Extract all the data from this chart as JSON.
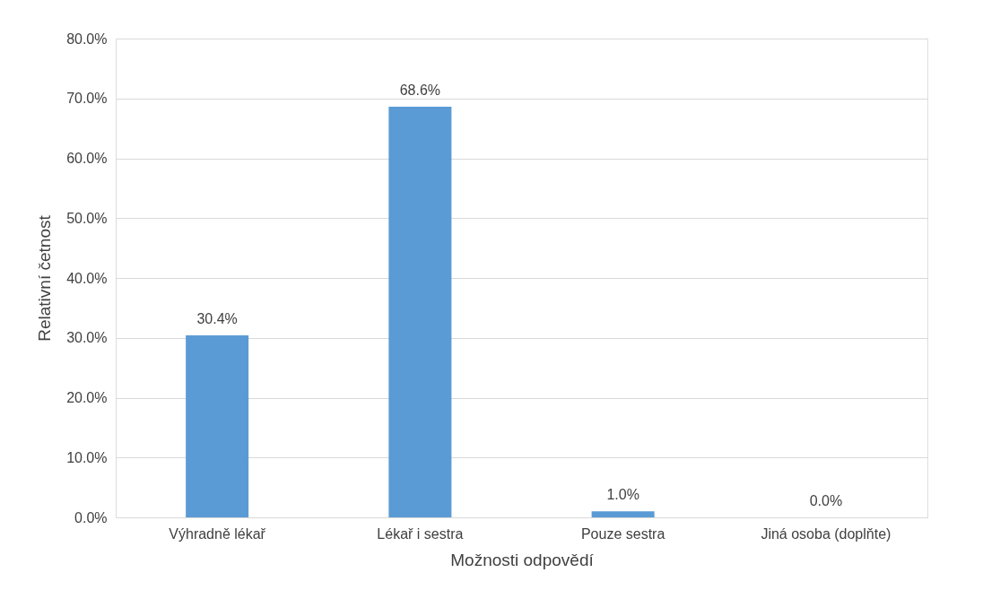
{
  "chart_data": {
    "type": "bar",
    "xlabel": "Možnosti odpovědí",
    "ylabel": "Relativní četnost",
    "categories": [
      "Výhradně lékař",
      "Lékař i sestra",
      "Pouze sestra",
      "Jiná osoba (doplňte)"
    ],
    "values": [
      30.4,
      68.6,
      1.0,
      0.0
    ],
    "value_labels": [
      "30.4%",
      "68.6%",
      "1.0%",
      "0.0%"
    ],
    "color": "#5b9bd5",
    "ylim": [
      0,
      80
    ],
    "yticks": [
      {
        "value": 0,
        "label": "0.0%"
      },
      {
        "value": 10,
        "label": "10.0%"
      },
      {
        "value": 20,
        "label": "20.0%"
      },
      {
        "value": 30,
        "label": "30.0%"
      },
      {
        "value": 40,
        "label": "40.0%"
      },
      {
        "value": 50,
        "label": "50.0%"
      },
      {
        "value": 60,
        "label": "60.0%"
      },
      {
        "value": 70,
        "label": "70.0%"
      },
      {
        "value": 80,
        "label": "80.0%"
      }
    ],
    "grid": "y"
  }
}
